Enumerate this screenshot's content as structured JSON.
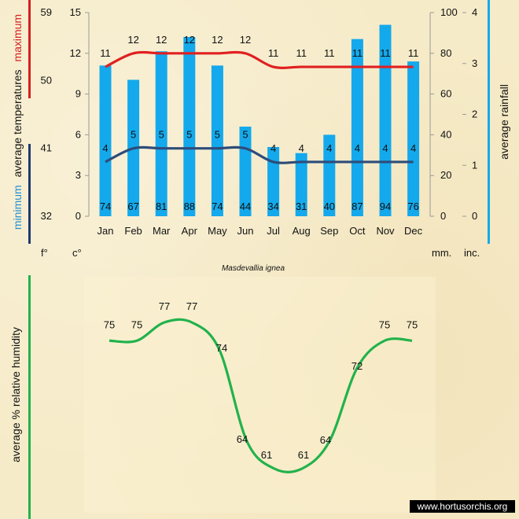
{
  "species": "Masdevallia ignea",
  "watermark": "www.hortusorchis.org",
  "colors": {
    "max_line": "#e02020",
    "min_line": "#2e4c7a",
    "rain_bar": "#14a9ec",
    "humidity_line": "#22b24c",
    "max_accent": "#d42020",
    "min_accent": "#1f3a6e",
    "rain_accent": "#14a9ec",
    "hum_accent": "#22b24c"
  },
  "chart_data": [
    {
      "type": "bar+line",
      "title": "",
      "categories": [
        "Jan",
        "Feb",
        "Mar",
        "Apr",
        "May",
        "Jun",
        "Jul",
        "Aug",
        "Sep",
        "Oct",
        "Nov",
        "Dec"
      ],
      "series": [
        {
          "name": "maximum",
          "axis": "celsius",
          "values": [
            11,
            12,
            12,
            12,
            12,
            12,
            11,
            11,
            11,
            11,
            11,
            11
          ]
        },
        {
          "name": "minimum",
          "axis": "celsius",
          "values": [
            4,
            5,
            5,
            5,
            5,
            5,
            4,
            4,
            4,
            4,
            4,
            4
          ]
        },
        {
          "name": "rainfall",
          "axis": "mm",
          "values": [
            74,
            67,
            81,
            88,
            74,
            44,
            34,
            31,
            40,
            87,
            94,
            76
          ]
        }
      ],
      "y_celsius": {
        "range": [
          0,
          15
        ],
        "ticks": [
          "0",
          "3",
          "6",
          "9",
          "12",
          "15"
        ],
        "unit": "c°"
      },
      "y_fahrenheit": {
        "range": [
          32,
          59
        ],
        "ticks": [
          "32",
          "41",
          "50",
          "59"
        ],
        "unit": "f°"
      },
      "y_mm": {
        "range": [
          0,
          100
        ],
        "ticks": [
          "0",
          "20",
          "40",
          "60",
          "80",
          "100"
        ],
        "unit": "mm."
      },
      "y_inches": {
        "range": [
          0,
          4
        ],
        "ticks": [
          "0",
          "1",
          "2",
          "3",
          "4"
        ],
        "unit": "inc."
      },
      "left_title": {
        "min": "minimum",
        "mid": "average temperatures",
        "max": "maximum"
      },
      "right_title": "average rainfall"
    },
    {
      "type": "line",
      "title": "",
      "categories": [
        "Jan",
        "Feb",
        "Mar",
        "Apr",
        "May",
        "Jun",
        "Jul",
        "Aug",
        "Sep",
        "Oct",
        "Nov",
        "Dec"
      ],
      "series": [
        {
          "name": "average % relative humidity",
          "values": [
            75,
            75,
            77,
            77,
            74,
            64,
            61,
            61,
            64,
            72,
            75,
            75
          ]
        }
      ],
      "ylabel": "average %  relative humidity"
    }
  ]
}
